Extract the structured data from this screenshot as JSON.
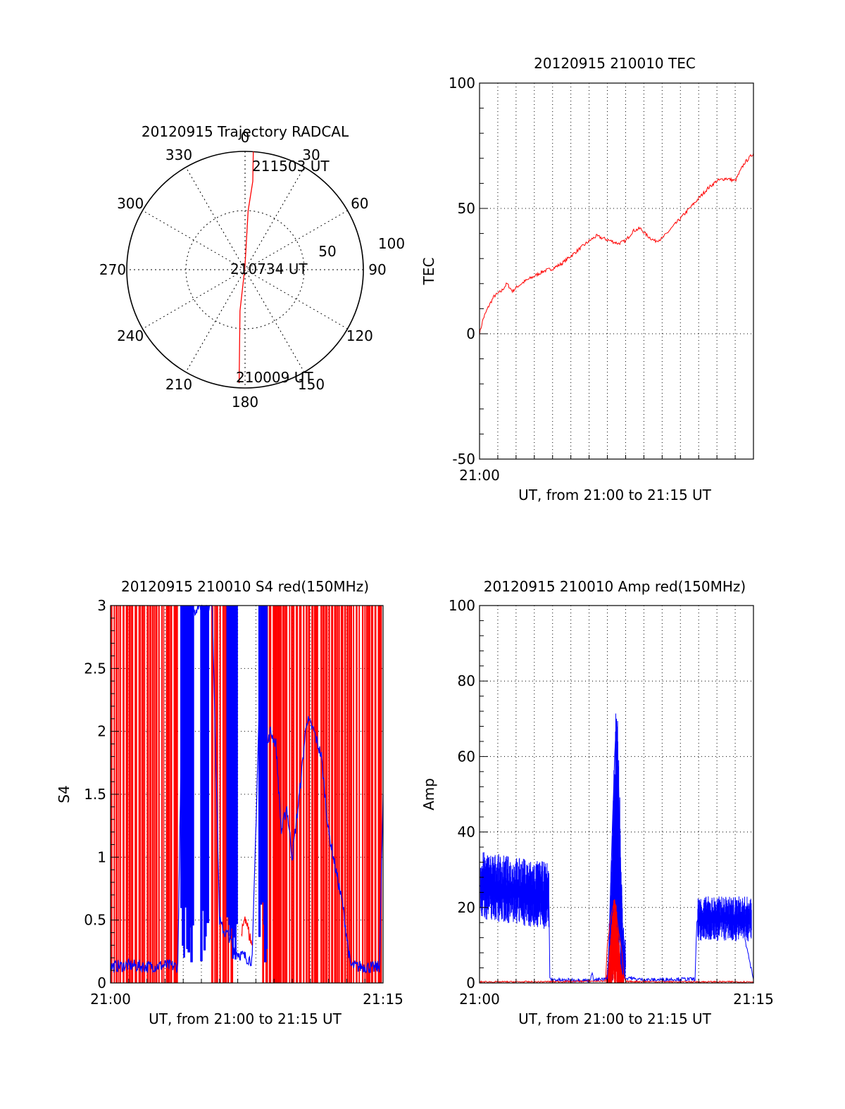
{
  "colors": {
    "red": "#ff0000",
    "blue": "#0000ff",
    "axis": "#000000",
    "grid": "#000000"
  },
  "chart_data": [
    {
      "id": "polar",
      "type": "polar",
      "title": "20120915 Trajectory RADCAL",
      "angle_labels": [
        "0",
        "30",
        "60",
        "90",
        "120",
        "150",
        "180",
        "210",
        "240",
        "270",
        "300",
        "330"
      ],
      "radial_labels": [
        "50",
        "100"
      ],
      "radial_max": 100,
      "annotations": [
        "211503 UT",
        "210734 UT",
        "210009 UT"
      ],
      "trajectory": {
        "color": "red",
        "points": [
          [
            4,
            100
          ],
          [
            5,
            75
          ],
          [
            3,
            50
          ],
          [
            356,
            2
          ],
          [
            187,
            35
          ],
          [
            183,
            96
          ]
        ]
      }
    },
    {
      "id": "tec",
      "type": "line",
      "title": "20120915 210010 TEC",
      "xlabel": "UT, from 21:00 to 21:15 UT",
      "ylabel": "TEC",
      "xlim": [
        0,
        15
      ],
      "ylim": [
        -50,
        100
      ],
      "yticks": [
        -50,
        0,
        50,
        100
      ],
      "xtick_labels": [
        "21:00"
      ],
      "grid": true,
      "series": [
        {
          "color": "red",
          "x": [
            0,
            0.2,
            0.5,
            0.8,
            1.2,
            1.5,
            1.8,
            2.1,
            2.5,
            3.0,
            3.5,
            4.0,
            4.5,
            5.0,
            5.5,
            6.0,
            6.4,
            6.8,
            7.2,
            7.6,
            8.0,
            8.4,
            8.8,
            9.2,
            9.6,
            10.0,
            10.5,
            11.0,
            11.5,
            12.0,
            12.5,
            13.0,
            13.5,
            14.0,
            14.5,
            15.0
          ],
          "y": [
            0,
            6,
            11,
            15,
            17,
            20,
            17,
            19,
            21,
            23,
            25,
            26,
            28,
            31,
            34,
            37,
            39,
            38,
            37,
            36,
            37,
            41,
            42,
            39,
            37,
            38,
            42,
            46,
            50,
            54,
            58,
            61,
            62,
            61,
            68,
            72
          ]
        }
      ]
    },
    {
      "id": "s4",
      "type": "line",
      "title": "20120915 210010 S4 red(150MHz)",
      "xlabel": "UT, from 21:00 to 21:15 UT",
      "ylabel": "S4",
      "xlim": [
        0,
        15
      ],
      "ylim": [
        0,
        3
      ],
      "yticks": [
        0,
        0.5,
        1,
        1.5,
        2,
        2.5,
        3
      ],
      "ytick_labels": [
        "0",
        "0.5",
        "1",
        "1.5",
        "2",
        "2.5",
        "3"
      ],
      "xtick_labels": [
        "21:00",
        "21:15"
      ],
      "grid": true,
      "series": [
        {
          "color": "blue",
          "x": [
            0,
            1,
            2,
            3,
            3.7,
            3.9,
            4.1,
            4.4,
            4.8,
            5.2,
            5.6,
            6.0,
            6.1,
            6.3,
            6.5,
            6.7,
            6.9,
            7.2,
            7.5,
            7.8,
            8.2,
            8.5,
            8.8,
            9.1,
            9.4,
            9.7,
            10.0,
            10.4,
            10.8,
            11.2,
            11.6,
            12.0,
            12.4,
            12.8,
            13.2,
            13.6,
            14.0,
            14.5,
            14.8,
            15.0
          ],
          "y": [
            0.13,
            0.14,
            0.13,
            0.14,
            0.13,
            2.0,
            3.0,
            2.9,
            3.0,
            3.0,
            3.0,
            0.5,
            0.45,
            0.4,
            0.38,
            0.3,
            0.25,
            0.22,
            0.2,
            0.18,
            2.3,
            1.8,
            2.0,
            1.9,
            1.2,
            1.4,
            1.0,
            1.5,
            2.1,
            2.0,
            1.8,
            1.2,
            0.9,
            0.6,
            0.14,
            0.13,
            0.13,
            0.12,
            0.13,
            1.5
          ]
        },
        {
          "color": "red",
          "x": [
            7.2,
            7.4,
            7.6,
            7.8
          ],
          "y": [
            0.35,
            0.55,
            0.4,
            0.3
          ]
        }
      ]
    },
    {
      "id": "amp",
      "type": "line",
      "title": "20120915 210010 Amp red(150MHz)",
      "xlabel": "UT, from 21:00 to 21:15 UT",
      "ylabel": "Amp",
      "xlim": [
        0,
        15
      ],
      "ylim": [
        0,
        100
      ],
      "yticks": [
        0,
        20,
        40,
        60,
        80,
        100
      ],
      "xtick_labels": [
        "21:00",
        "21:15"
      ],
      "grid": true,
      "series": [
        {
          "color": "blue",
          "x": [
            0,
            0.5,
            1,
            1.5,
            2,
            2.5,
            3,
            3.5,
            3.8,
            3.85,
            4.5,
            5.5,
            6.0,
            6.2,
            6.25,
            7.0,
            7.1,
            7.2,
            7.3,
            7.4,
            7.5,
            7.6,
            7.7,
            7.8,
            7.9,
            8.0,
            8.2,
            8.5,
            9.5,
            10.5,
            11.8,
            11.9,
            12.5,
            13.0,
            13.5,
            14.0,
            14.4,
            14.6,
            15.0
          ],
          "y": [
            26,
            28,
            25,
            27,
            24,
            26,
            23,
            24,
            22,
            1,
            0.7,
            0.8,
            0.6,
            2.5,
            0.8,
            1,
            12,
            30,
            45,
            60,
            70,
            55,
            35,
            15,
            4,
            1,
            1.5,
            1,
            0.8,
            1,
            1,
            16,
            18,
            17,
            16,
            18,
            17,
            10,
            1
          ]
        },
        {
          "color": "red",
          "x": [
            0,
            3,
            6.9,
            7.0,
            7.2,
            7.4,
            7.6,
            7.8,
            7.9,
            8.0,
            11.0,
            15.0
          ],
          "y": [
            0.3,
            0.3,
            0.5,
            10,
            18,
            22,
            14,
            8,
            2,
            0.4,
            0.3,
            0.3
          ]
        }
      ]
    }
  ]
}
